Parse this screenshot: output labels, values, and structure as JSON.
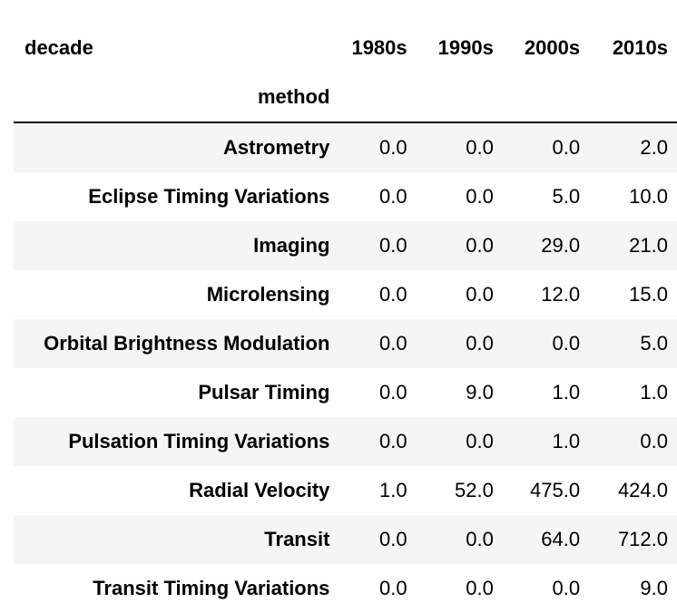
{
  "table": {
    "columns_name": "decade",
    "index_name": "method",
    "columns": [
      "1980s",
      "1990s",
      "2000s",
      "2010s"
    ],
    "rows": [
      {
        "label": "Astrometry",
        "values": [
          "0.0",
          "0.0",
          "0.0",
          "2.0"
        ]
      },
      {
        "label": "Eclipse Timing Variations",
        "values": [
          "0.0",
          "0.0",
          "5.0",
          "10.0"
        ]
      },
      {
        "label": "Imaging",
        "values": [
          "0.0",
          "0.0",
          "29.0",
          "21.0"
        ]
      },
      {
        "label": "Microlensing",
        "values": [
          "0.0",
          "0.0",
          "12.0",
          "15.0"
        ]
      },
      {
        "label": "Orbital Brightness Modulation",
        "values": [
          "0.0",
          "0.0",
          "0.0",
          "5.0"
        ]
      },
      {
        "label": "Pulsar Timing",
        "values": [
          "0.0",
          "9.0",
          "1.0",
          "1.0"
        ]
      },
      {
        "label": "Pulsation Timing Variations",
        "values": [
          "0.0",
          "0.0",
          "1.0",
          "0.0"
        ]
      },
      {
        "label": "Radial Velocity",
        "values": [
          "1.0",
          "52.0",
          "475.0",
          "424.0"
        ]
      },
      {
        "label": "Transit",
        "values": [
          "0.0",
          "0.0",
          "64.0",
          "712.0"
        ]
      },
      {
        "label": "Transit Timing Variations",
        "values": [
          "0.0",
          "0.0",
          "0.0",
          "9.0"
        ]
      }
    ]
  }
}
